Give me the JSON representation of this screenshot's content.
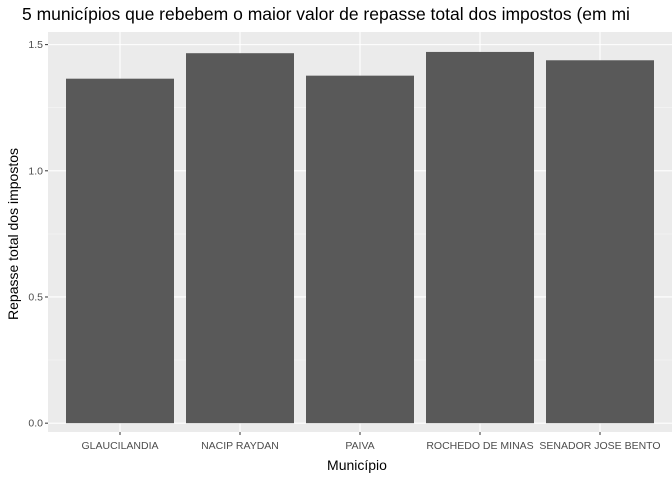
{
  "chart_data": {
    "type": "bar",
    "title": "5 municípios que rebebem o maior valor de repasse total dos impostos (em mi",
    "xlabel": "Município",
    "ylabel": "Repasse total dos impostos",
    "categories": [
      "GLAUCILANDIA",
      "NACIP RAYDAN",
      "PAIVA",
      "ROCHEDO DE MINAS",
      "SENADOR JOSE BENTO"
    ],
    "values": [
      1.365,
      1.466,
      1.377,
      1.471,
      1.438
    ],
    "ylim": [
      -0.035,
      1.55
    ],
    "yticks": [
      0.0,
      0.5,
      1.0,
      1.5
    ],
    "ytick_labels": [
      "0.0",
      "0.5",
      "1.0",
      "1.5"
    ],
    "grid": true,
    "colors": {
      "bar": "#595959",
      "panel": "#ebebeb",
      "grid_major": "#ffffff",
      "grid_minor": "#f5f5f5"
    }
  }
}
